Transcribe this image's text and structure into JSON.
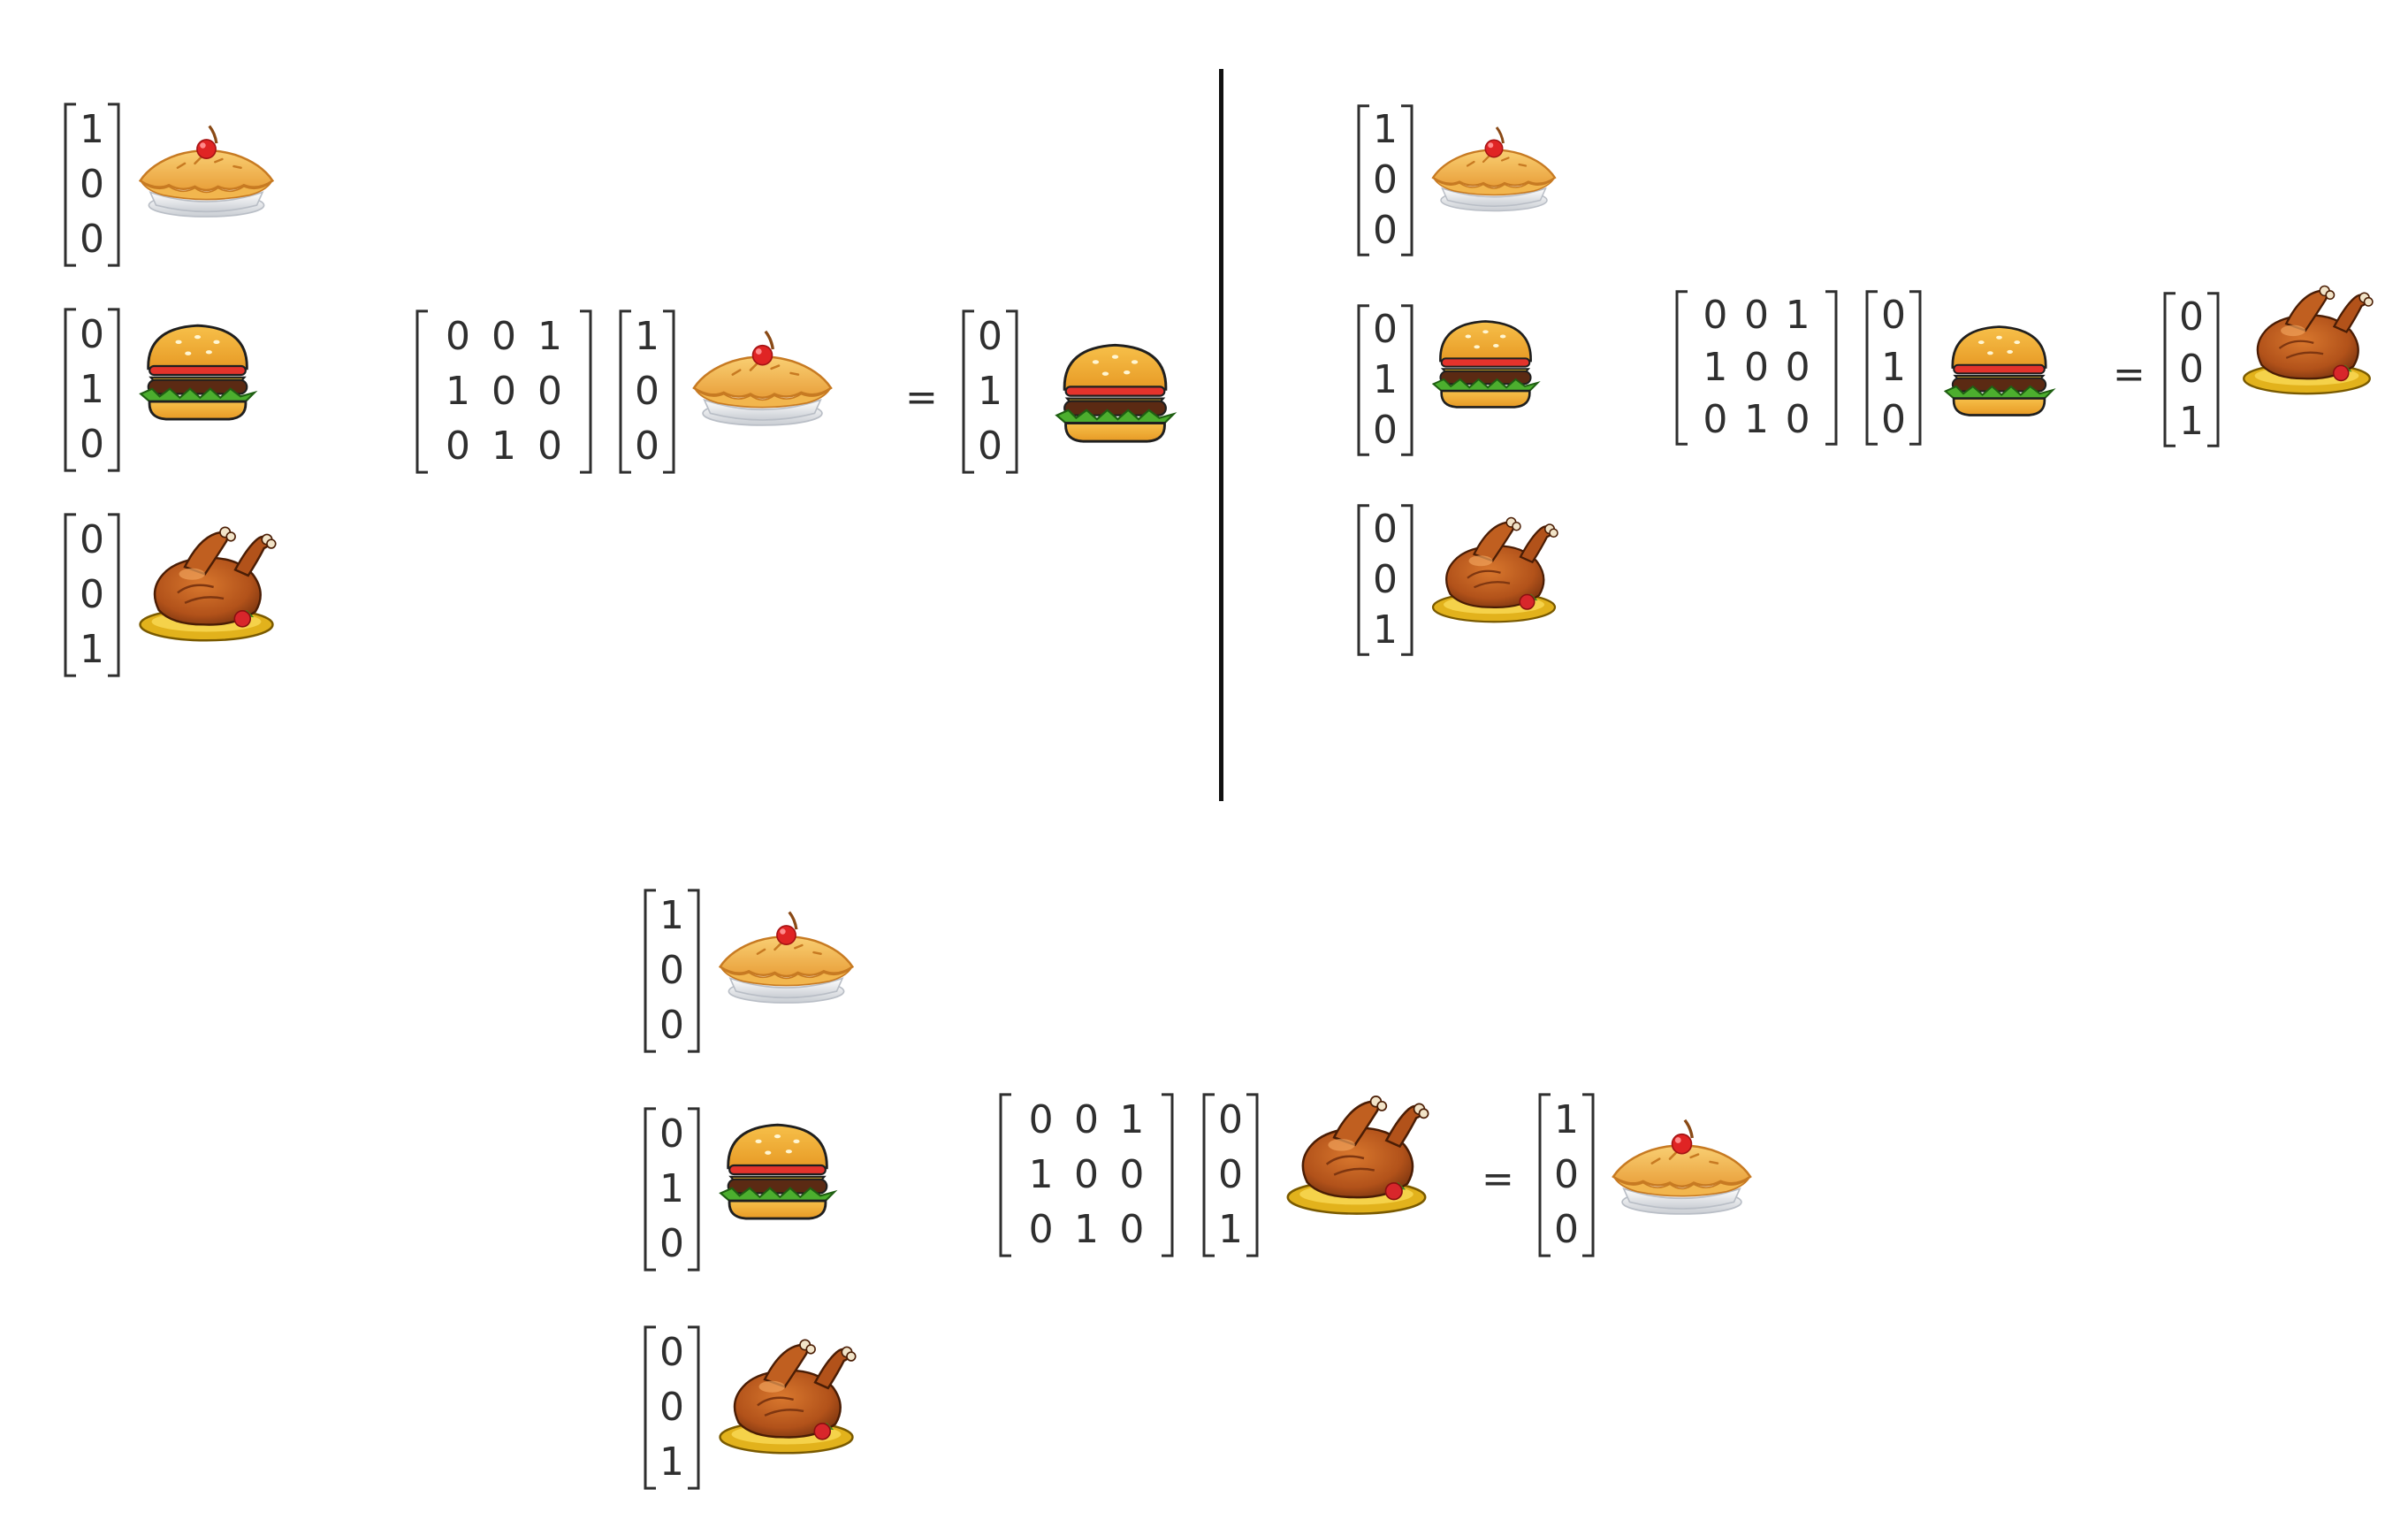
{
  "foods": {
    "pie": {
      "icon": "pie-icon",
      "vector": [
        "1",
        "0",
        "0"
      ]
    },
    "burger": {
      "icon": "burger-icon",
      "vector": [
        "0",
        "1",
        "0"
      ]
    },
    "turkey": {
      "icon": "turkey-icon",
      "vector": [
        "0",
        "0",
        "1"
      ]
    }
  },
  "matrix": [
    "0",
    "0",
    "1",
    "1",
    "0",
    "0",
    "0",
    "1",
    "0"
  ],
  "equals_sign": "=",
  "panels": [
    {
      "input": "pie",
      "output": "burger"
    },
    {
      "input": "burger",
      "output": "turkey"
    },
    {
      "input": "turkey",
      "output": "pie"
    }
  ],
  "colors": {
    "text": "#2f2f2f",
    "divider": "#111111"
  }
}
